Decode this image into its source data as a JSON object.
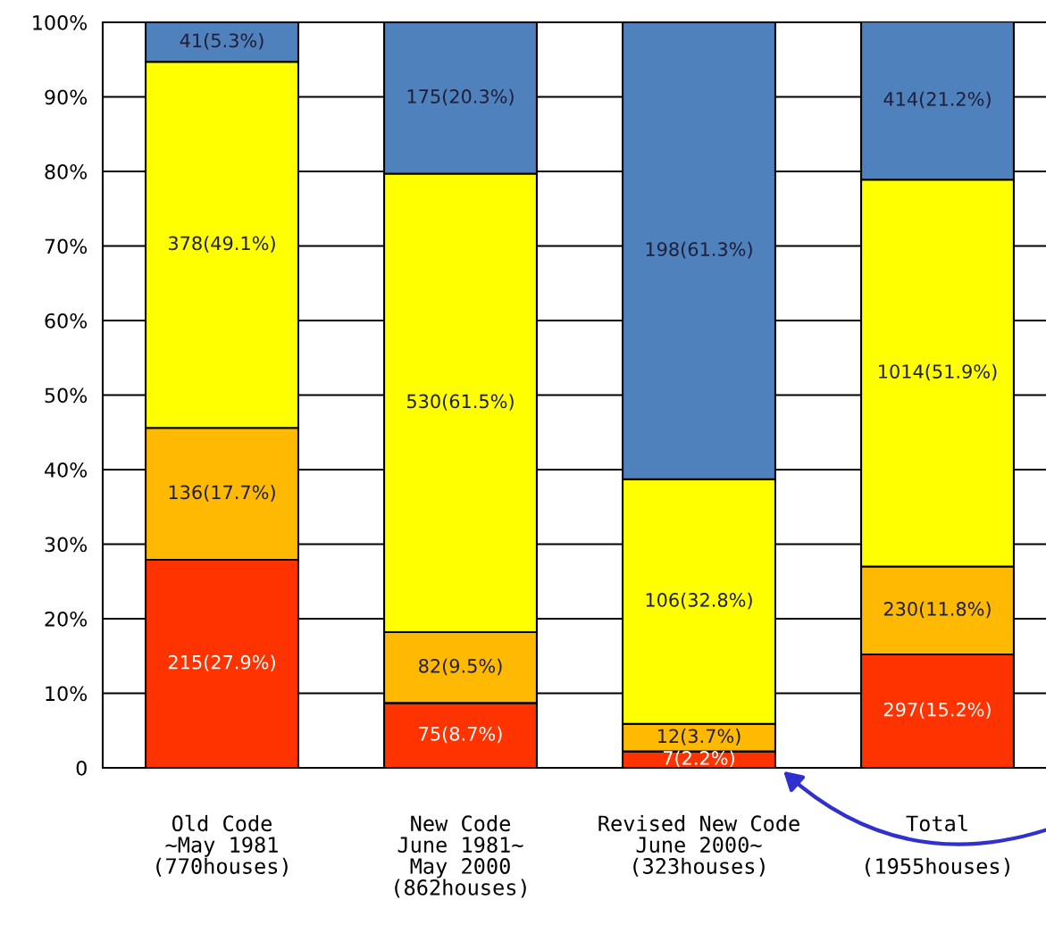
{
  "chart_data": {
    "type": "bar",
    "stacked": true,
    "categories": [
      "Old Code\n∼May 1981\n(770houses)",
      "New Code\nJune 1981∼\nMay 2000\n(862houses)",
      "Revised New Code\nJune 2000∼\n(323houses)",
      "Total\n\n(1955houses)"
    ],
    "series": [
      {
        "color": "#ff3300",
        "values": [
          27.9,
          8.7,
          2.2,
          15.2
        ],
        "value_labels": [
          "215(27.9%)",
          "75(8.7%)",
          "7(2.2%)",
          "297(15.2%)"
        ]
      },
      {
        "color": "#ffb900",
        "values": [
          17.7,
          9.5,
          3.7,
          11.8
        ],
        "value_labels": [
          "136(17.7%)",
          "82(9.5%)",
          "12(3.7%)",
          "230(11.8%)"
        ]
      },
      {
        "color": "#ffff00",
        "values": [
          49.1,
          61.5,
          32.8,
          51.9
        ],
        "value_labels": [
          "378(49.1%)",
          "530(61.5%)",
          "106(32.8%)",
          "1014(51.9%)"
        ]
      },
      {
        "color": "#4f81bd",
        "values": [
          5.3,
          20.3,
          61.3,
          21.2
        ],
        "value_labels": [
          "41(5.3%)",
          "175(20.3%)",
          "198(61.3%)",
          "414(21.2%)"
        ]
      }
    ],
    "ylim": [
      0,
      100
    ],
    "yticks": [
      0,
      {
        "value": 10,
        "label": "10%"
      },
      {
        "value": 20,
        "label": "20%"
      },
      {
        "value": 30,
        "label": "30%"
      },
      {
        "value": 40,
        "label": "40%"
      },
      {
        "value": 50,
        "label": "50%"
      },
      {
        "value": 60,
        "label": "60%"
      },
      {
        "value": 70,
        "label": "70%"
      },
      {
        "value": 80,
        "label": "80%"
      },
      {
        "value": 90,
        "label": "90%"
      },
      {
        "value": 100,
        "label": "100%"
      }
    ],
    "grid": "y"
  }
}
